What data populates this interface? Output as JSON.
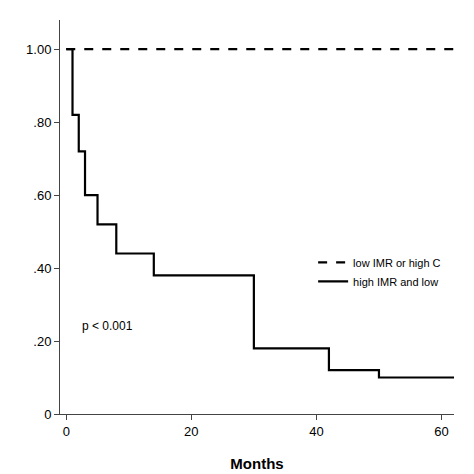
{
  "chart_data": {
    "type": "line",
    "xlabel": "Months",
    "xlim": [
      -1,
      62
    ],
    "ylim": [
      0.0,
      1.08
    ],
    "xticks": [
      0,
      20,
      40,
      60
    ],
    "yticks": [
      0,
      {
        "value": 0.2,
        "label": ".20"
      },
      {
        "value": 0.4,
        "label": ".40"
      },
      {
        "value": 0.6,
        "label": ".60"
      },
      {
        "value": 0.8,
        "label": ".80"
      },
      {
        "value": 1.0,
        "label": "1.00"
      }
    ],
    "grid": false,
    "legend": "lower right",
    "annotation": "p < 0.001",
    "series": [
      {
        "name": "low IMR or high C",
        "color": "#000000",
        "line_style": "dashed",
        "x": [
          0,
          62
        ],
        "values": [
          1.0,
          1.0
        ]
      },
      {
        "name": "high IMR and low",
        "color": "#000000",
        "line_style": "solid",
        "x": [
          0,
          1,
          1,
          2,
          2,
          3,
          3,
          5,
          5,
          8,
          8,
          14,
          14,
          30,
          30,
          42,
          42,
          50,
          50,
          62
        ],
        "values": [
          1.0,
          1.0,
          0.82,
          0.82,
          0.72,
          0.72,
          0.6,
          0.6,
          0.52,
          0.52,
          0.44,
          0.44,
          0.38,
          0.38,
          0.18,
          0.18,
          0.12,
          0.12,
          0.1,
          0.1
        ]
      }
    ]
  }
}
